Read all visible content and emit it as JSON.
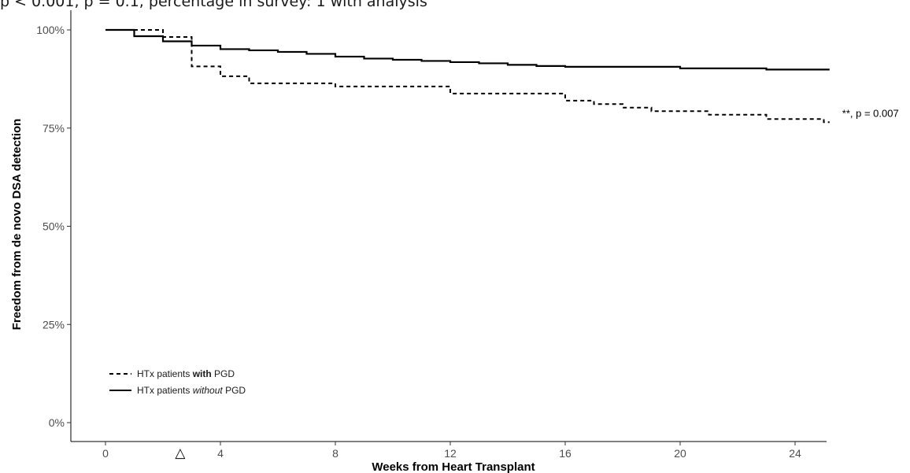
{
  "caption_fragment": "p < 0.001, p = 0.1, percentage in survey: 1 with analysis",
  "chart_data": {
    "type": "line",
    "step": true,
    "xlabel": "Weeks from Heart Transplant",
    "ylabel": "Freedom from de novo DSA detection",
    "xlim": [
      -1.5,
      25.2
    ],
    "ylim": [
      0,
      100
    ],
    "x_ticks": [
      0,
      4,
      8,
      12,
      16,
      20,
      24
    ],
    "y_ticks": [
      0,
      25,
      50,
      75,
      100
    ],
    "y_tick_labels": [
      "0%",
      "25%",
      "50%",
      "75%",
      "100%"
    ],
    "grid": false,
    "legend_position": "bottom-left",
    "marker": {
      "symbol": "△",
      "x": 2.6
    },
    "annotation": {
      "text": "**, p = 0.007",
      "x": 25.2,
      "y": 76.5
    },
    "series": [
      {
        "name_pre": "HTx patients ",
        "name_emph": "with",
        "name_post": " PGD",
        "emphasis": "bold",
        "line": "dashed",
        "x": [
          0,
          1.0,
          2.0,
          3.0,
          4.0,
          5.0,
          8.0,
          12.0,
          16.0,
          17.0,
          18.0,
          19.0,
          21.0,
          23.0,
          25.0,
          25.2
        ],
        "y": [
          100,
          100,
          98.2,
          90.7,
          88.2,
          86.4,
          85.6,
          83.8,
          82.0,
          81.1,
          80.2,
          79.3,
          78.4,
          77.3,
          76.5,
          76.5
        ]
      },
      {
        "name_pre": "HTx patients ",
        "name_emph": "without",
        "name_post": " PGD",
        "emphasis": "italic",
        "line": "solid",
        "x": [
          0,
          1.0,
          2.0,
          3.0,
          4.0,
          5.0,
          6.0,
          7.0,
          8.0,
          9.0,
          10.0,
          11.0,
          12.0,
          13.0,
          14.0,
          15.0,
          16.0,
          20.0,
          23.0,
          25.2
        ],
        "y": [
          100,
          98.4,
          97.1,
          96.0,
          95.1,
          94.8,
          94.4,
          93.9,
          93.2,
          92.7,
          92.4,
          92.1,
          91.8,
          91.5,
          91.1,
          90.8,
          90.6,
          90.2,
          89.9,
          89.9
        ]
      }
    ]
  }
}
